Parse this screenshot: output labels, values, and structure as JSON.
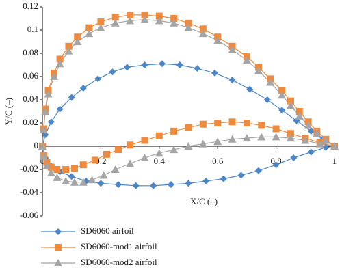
{
  "chart_data": {
    "type": "scatter",
    "y_label": "Y/C (–)",
    "x_label": "X/C (–)",
    "xlim": [
      0,
      1
    ],
    "ylim": [
      -0.06,
      0.12
    ],
    "xticks": [
      0,
      0.2,
      0.4,
      0.6,
      0.8,
      1
    ],
    "yticks": [
      -0.06,
      -0.04,
      -0.02,
      0,
      0.02,
      0.04,
      0.06,
      0.08,
      0.1,
      0.12
    ],
    "series": [
      {
        "name": "SD6060 airfoil",
        "color": "#4a86c8",
        "marker": "diamond",
        "x": [
          1,
          0.96,
          0.92,
          0.87,
          0.82,
          0.77,
          0.71,
          0.65,
          0.59,
          0.53,
          0.47,
          0.41,
          0.35,
          0.29,
          0.24,
          0.19,
          0.14,
          0.1,
          0.06,
          0.03,
          0.01,
          0,
          0.01,
          0.03,
          0.06,
          0.1,
          0.15,
          0.2,
          0.26,
          0.32,
          0.38,
          0.44,
          0.5,
          0.56,
          0.62,
          0.68,
          0.74,
          0.8,
          0.86,
          0.92,
          0.97,
          1
        ],
        "values": [
          0,
          0.006,
          0.013,
          0.022,
          0.031,
          0.04,
          0.049,
          0.057,
          0.063,
          0.067,
          0.07,
          0.071,
          0.07,
          0.068,
          0.064,
          0.058,
          0.05,
          0.042,
          0.032,
          0.021,
          0.01,
          0,
          -0.01,
          -0.017,
          -0.022,
          -0.026,
          -0.03,
          -0.032,
          -0.033,
          -0.034,
          -0.034,
          -0.033,
          -0.032,
          -0.03,
          -0.028,
          -0.025,
          -0.021,
          -0.016,
          -0.01,
          -0.005,
          -0.001,
          0
        ]
      },
      {
        "name": "SD6060-mod1 airfoil",
        "color": "#f08a3c",
        "marker": "square",
        "x": [
          1,
          0.97,
          0.94,
          0.91,
          0.88,
          0.85,
          0.82,
          0.78,
          0.74,
          0.7,
          0.65,
          0.6,
          0.55,
          0.5,
          0.45,
          0.4,
          0.35,
          0.3,
          0.25,
          0.2,
          0.16,
          0.12,
          0.09,
          0.06,
          0.04,
          0.02,
          0.01,
          0.004,
          0,
          0.005,
          0.015,
          0.03,
          0.05,
          0.08,
          0.11,
          0.14,
          0.18,
          0.22,
          0.26,
          0.3,
          0.35,
          0.4,
          0.45,
          0.5,
          0.55,
          0.6,
          0.65,
          0.7,
          0.75,
          0.8,
          0.85,
          0.9,
          0.95,
          1
        ],
        "values": [
          0,
          0.006,
          0.013,
          0.021,
          0.03,
          0.039,
          0.048,
          0.058,
          0.068,
          0.077,
          0.086,
          0.094,
          0.101,
          0.106,
          0.11,
          0.112,
          0.113,
          0.113,
          0.111,
          0.107,
          0.102,
          0.094,
          0.086,
          0.075,
          0.063,
          0.048,
          0.032,
          0.015,
          0,
          -0.008,
          -0.014,
          -0.018,
          -0.02,
          -0.02,
          -0.019,
          -0.016,
          -0.012,
          -0.007,
          -0.003,
          0.001,
          0.005,
          0.009,
          0.013,
          0.016,
          0.019,
          0.02,
          0.021,
          0.02,
          0.018,
          0.015,
          0.011,
          0.007,
          0.003,
          0
        ]
      },
      {
        "name": "SD6060-mod2 airfoil",
        "color": "#a5a5a5",
        "marker": "triangle",
        "x": [
          1,
          0.97,
          0.94,
          0.91,
          0.88,
          0.85,
          0.82,
          0.78,
          0.74,
          0.7,
          0.65,
          0.6,
          0.55,
          0.5,
          0.45,
          0.4,
          0.35,
          0.3,
          0.25,
          0.2,
          0.16,
          0.12,
          0.09,
          0.06,
          0.04,
          0.02,
          0.01,
          0.004,
          0,
          0.005,
          0.015,
          0.03,
          0.05,
          0.08,
          0.11,
          0.14,
          0.17,
          0.21,
          0.25,
          0.3,
          0.35,
          0.4,
          0.45,
          0.5,
          0.55,
          0.6,
          0.65,
          0.7,
          0.75,
          0.8,
          0.85,
          0.9,
          0.95,
          1
        ],
        "values": [
          0,
          0.005,
          0.011,
          0.018,
          0.026,
          0.035,
          0.044,
          0.055,
          0.065,
          0.074,
          0.083,
          0.091,
          0.097,
          0.102,
          0.106,
          0.108,
          0.109,
          0.108,
          0.106,
          0.102,
          0.097,
          0.09,
          0.082,
          0.071,
          0.06,
          0.045,
          0.03,
          0.014,
          0,
          -0.009,
          -0.017,
          -0.023,
          -0.027,
          -0.03,
          -0.031,
          -0.031,
          -0.029,
          -0.025,
          -0.02,
          -0.015,
          -0.01,
          -0.006,
          -0.003,
          0.0,
          0.002,
          0.004,
          0.006,
          0.007,
          0.008,
          0.008,
          0.007,
          0.005,
          0.002,
          0
        ]
      }
    ]
  }
}
